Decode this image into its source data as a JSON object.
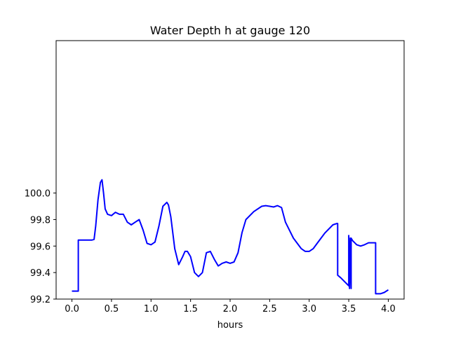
{
  "chart_data": {
    "type": "line",
    "title": "Water Depth h at gauge 120",
    "xlabel": "hours",
    "ylabel": "",
    "xlim": [
      -0.2,
      4.2
    ],
    "ylim": [
      99.2,
      101.15
    ],
    "xticks": [
      0.0,
      0.5,
      1.0,
      1.5,
      2.0,
      2.5,
      3.0,
      3.5,
      4.0
    ],
    "xtick_labels": [
      "0.0",
      "0.5",
      "1.0",
      "1.5",
      "2.0",
      "2.5",
      "3.0",
      "3.5",
      "4.0"
    ],
    "yticks": [
      99.2,
      99.4,
      99.6,
      99.8,
      100.0
    ],
    "ytick_labels": [
      "99.2",
      "99.4",
      "99.6",
      "99.8",
      "100.0"
    ],
    "grid": false,
    "legend": "none",
    "series": [
      {
        "color": "#0000ff",
        "x": [
          0.0,
          0.07,
          0.07,
          0.08,
          0.08,
          0.25,
          0.28,
          0.3,
          0.33,
          0.36,
          0.38,
          0.4,
          0.42,
          0.45,
          0.5,
          0.55,
          0.6,
          0.65,
          0.7,
          0.75,
          0.8,
          0.85,
          0.9,
          0.95,
          1.0,
          1.05,
          1.1,
          1.15,
          1.2,
          1.22,
          1.25,
          1.3,
          1.35,
          1.4,
          1.43,
          1.46,
          1.5,
          1.55,
          1.6,
          1.65,
          1.7,
          1.75,
          1.8,
          1.85,
          1.9,
          1.95,
          2.0,
          2.05,
          2.1,
          2.15,
          2.2,
          2.3,
          2.4,
          2.45,
          2.5,
          2.55,
          2.6,
          2.65,
          2.7,
          2.8,
          2.9,
          2.95,
          3.0,
          3.05,
          3.1,
          3.2,
          3.3,
          3.35,
          3.36,
          3.36,
          3.4,
          3.45,
          3.5,
          3.5,
          3.51,
          3.51,
          3.52,
          3.53,
          3.53,
          3.55,
          3.6,
          3.65,
          3.7,
          3.75,
          3.78,
          3.84,
          3.84,
          3.85,
          3.9,
          3.95,
          4.0
        ],
        "y": [
          99.26,
          99.26,
          99.26,
          99.26,
          99.645,
          99.645,
          99.65,
          99.75,
          99.95,
          100.08,
          100.1,
          100.0,
          99.88,
          99.84,
          99.83,
          99.855,
          99.84,
          99.84,
          99.78,
          99.76,
          99.78,
          99.8,
          99.72,
          99.62,
          99.61,
          99.63,
          99.75,
          99.9,
          99.93,
          99.91,
          99.82,
          99.58,
          99.46,
          99.52,
          99.56,
          99.56,
          99.52,
          99.4,
          99.37,
          99.4,
          99.55,
          99.56,
          99.5,
          99.45,
          99.47,
          99.48,
          99.47,
          99.48,
          99.55,
          99.7,
          99.8,
          99.86,
          99.9,
          99.905,
          99.9,
          99.895,
          99.905,
          99.89,
          99.78,
          99.66,
          99.58,
          99.56,
          99.56,
          99.58,
          99.62,
          99.7,
          99.76,
          99.77,
          99.77,
          99.38,
          99.36,
          99.33,
          99.3,
          99.68,
          99.3,
          99.28,
          99.66,
          99.28,
          99.66,
          99.64,
          99.61,
          99.6,
          99.61,
          99.625,
          99.625,
          99.625,
          99.24,
          99.24,
          99.24,
          99.25,
          99.27
        ]
      }
    ]
  }
}
